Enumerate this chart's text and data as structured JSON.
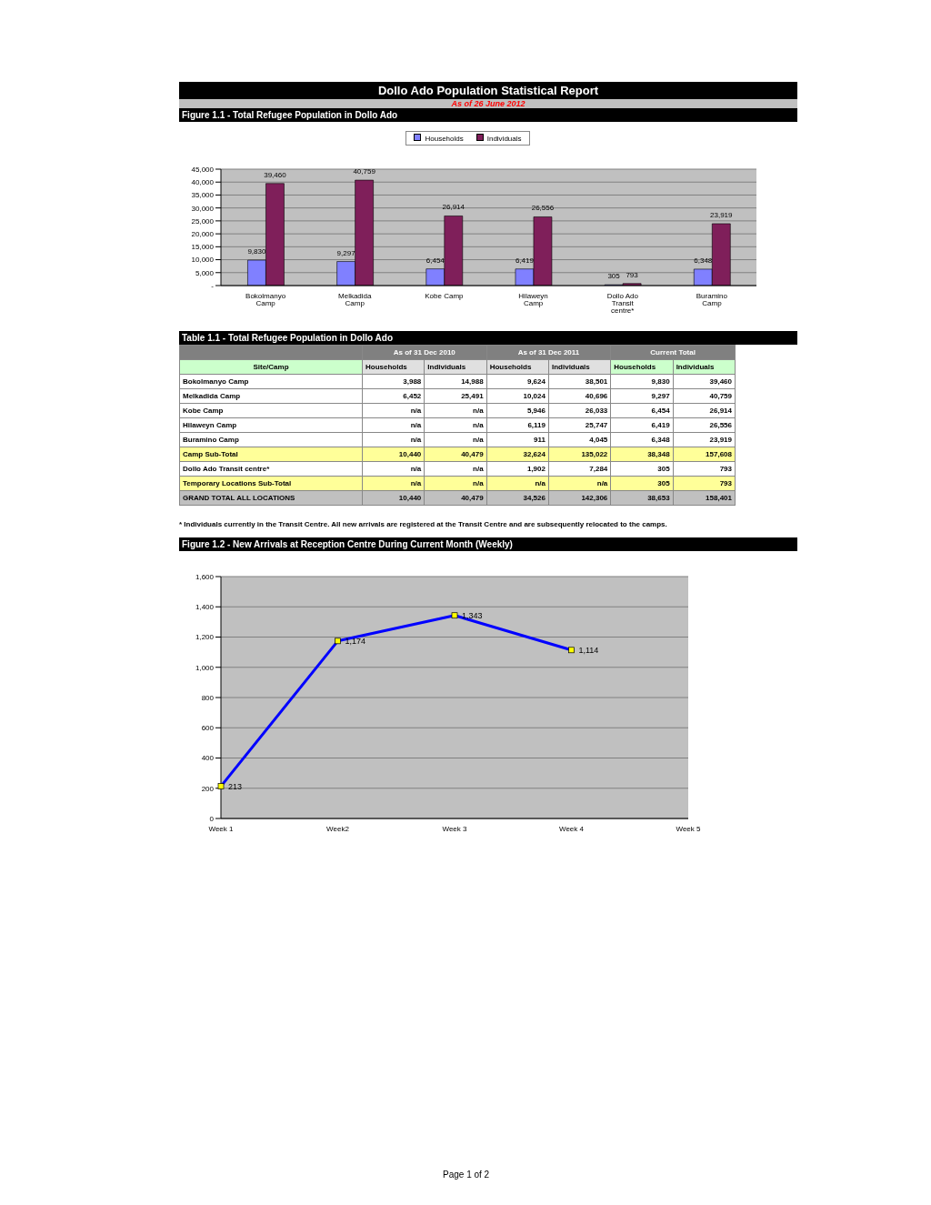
{
  "chart_data": [
    {
      "type": "bar",
      "title": "Dollo Ado Population Statistical Report",
      "subtitle": "As of 26 June 2012",
      "annotations": [
        "Figure 1.1 - Total Refugee Population in Dollo Ado"
      ],
      "categories": [
        "Bokolmanyo Camp",
        "Melkadida Camp",
        "Kobe Camp",
        "Hilaweyn Camp",
        "Dollo Ado Transit centre*",
        "Buramino Camp"
      ],
      "series": [
        {
          "name": "Households",
          "color": "#8080ff",
          "values": [
            9830,
            9297,
            6454,
            6419,
            305,
            6348
          ],
          "value_labels": [
            "9,830",
            "9,297",
            "6,454",
            "6,419",
            "305",
            "6,348"
          ]
        },
        {
          "name": "Individuals",
          "color": "#7f1f5a",
          "values": [
            39460,
            40759,
            26914,
            26556,
            793,
            23919
          ],
          "value_labels": [
            "39,460",
            "40,759",
            "26,914",
            "26,556",
            "793",
            "23,919"
          ]
        }
      ],
      "ylim": [
        0,
        45000
      ],
      "yticks": [
        {
          "value": 0,
          "label": "-"
        },
        {
          "value": 5000,
          "label": "5,000"
        },
        {
          "value": 10000,
          "label": "10,000"
        },
        {
          "value": 15000,
          "label": "15,000"
        },
        {
          "value": 20000,
          "label": "20,000"
        },
        {
          "value": 25000,
          "label": "25,000"
        },
        {
          "value": 30000,
          "label": "30,000"
        },
        {
          "value": 35000,
          "label": "35,000"
        },
        {
          "value": 40000,
          "label": "40,000"
        },
        {
          "value": 45000,
          "label": "45,000"
        }
      ],
      "grid": "y",
      "legend": "top"
    },
    {
      "type": "other",
      "title": "Table 1.1 - Total Refugee Population in Dollo Ado",
      "annotations": [
        "As of 31 Dec 2010",
        "As of 31 Dec 2011",
        "Current Total",
        "* Individuals currently in the Transit Centre. All new arrivals are registered at the Transit Centre and are subsequently relocated to the camps."
      ],
      "categories": [
        "Site/Camp",
        "Households",
        "Individuals",
        "Households",
        "Individuals",
        "Households",
        "Individuals"
      ],
      "y_categories": [
        "Bokolmanyo Camp",
        "Melkadida Camp",
        "Kobe Camp",
        "Hilaweyn Camp",
        "Buramino Camp",
        "Camp Sub-Total",
        "Dollo Ado Transit centre*",
        "Temporary Locations Sub-Total",
        "GRAND TOTAL ALL LOCATIONS"
      ],
      "cell_labels": [
        [
          "3,988",
          "14,988",
          "9,624",
          "38,501",
          "9,830",
          "39,460"
        ],
        [
          "6,452",
          "25,491",
          "10,024",
          "40,696",
          "9,297",
          "40,759"
        ],
        [
          "n/a",
          "n/a",
          "5,946",
          "26,033",
          "6,454",
          "26,914"
        ],
        [
          "n/a",
          "n/a",
          "6,119",
          "25,747",
          "6,419",
          "26,556"
        ],
        [
          "n/a",
          "n/a",
          "911",
          "4,045",
          "6,348",
          "23,919"
        ],
        [
          "10,440",
          "40,479",
          "32,624",
          "135,022",
          "38,348",
          "157,608"
        ],
        [
          "n/a",
          "n/a",
          "1,902",
          "7,284",
          "305",
          "793"
        ],
        [
          "n/a",
          "n/a",
          "n/a",
          "n/a",
          "305",
          "793"
        ],
        [
          "10,440",
          "40,479",
          "34,526",
          "142,306",
          "38,653",
          "158,401"
        ]
      ]
    },
    {
      "type": "line",
      "title": "Figure 1.2 - New Arrivals at Reception Centre During Current Month (Weekly)",
      "annotations": [
        "Page 1 of 2"
      ],
      "categories": [
        "Week 1",
        "Week2",
        "Week 3",
        "Week 4",
        "Week 5"
      ],
      "series": [
        {
          "color": "#0000ff",
          "values": [
            213,
            1174,
            1343,
            1114,
            null
          ],
          "value_labels": [
            "213",
            "1,174",
            "1,343",
            "1,114",
            null
          ]
        }
      ],
      "ylim": [
        0,
        1600
      ],
      "yticks": [
        0,
        200,
        400,
        600,
        800,
        {
          "value": 1000,
          "label": "1,000"
        },
        {
          "value": 1200,
          "label": "1,200"
        },
        {
          "value": 1400,
          "label": "1,400"
        },
        {
          "value": 1600,
          "label": "1,600"
        }
      ],
      "grid": "y",
      "legend": false,
      "marker": "square",
      "line_style": "solid"
    }
  ]
}
